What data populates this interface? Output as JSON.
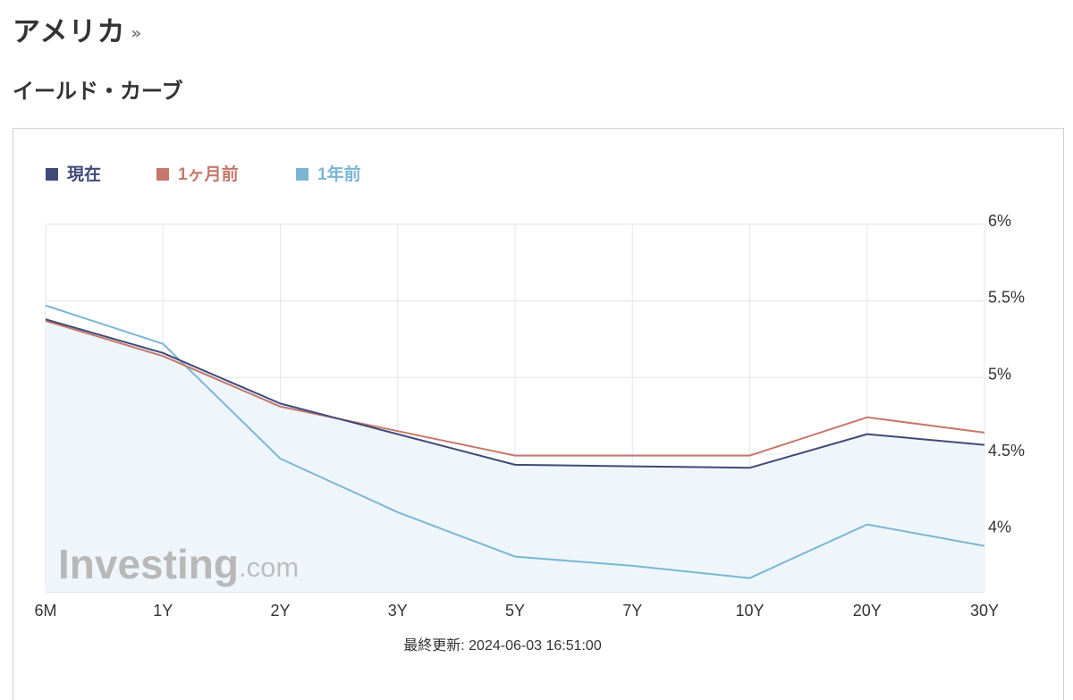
{
  "header": {
    "title": "アメリカ",
    "title_chevron": "»",
    "section_title": "イールド・カーブ"
  },
  "watermark": {
    "brand": "Investing",
    "suffix": ".com"
  },
  "chart_data": {
    "type": "line",
    "categories": [
      "6M",
      "1Y",
      "2Y",
      "3Y",
      "5Y",
      "7Y",
      "10Y",
      "20Y",
      "30Y"
    ],
    "series": [
      {
        "name": "現在",
        "color": "#3f4a78",
        "values": [
          5.38,
          5.16,
          4.83,
          4.63,
          4.43,
          4.42,
          4.41,
          4.63,
          4.56
        ]
      },
      {
        "name": "1ヶ月前",
        "color": "#c5786a",
        "values": [
          5.37,
          5.14,
          4.81,
          4.65,
          4.49,
          4.49,
          4.49,
          4.74,
          4.64
        ]
      },
      {
        "name": "1年前",
        "color": "#7ab6d3",
        "values": [
          5.47,
          5.22,
          4.47,
          4.12,
          3.83,
          3.77,
          3.69,
          4.04,
          3.9
        ]
      }
    ],
    "y_ticks": [
      {
        "value": 6.0,
        "label": "6%"
      },
      {
        "value": 5.5,
        "label": "5.5%"
      },
      {
        "value": 5.0,
        "label": "5%"
      },
      {
        "value": 4.5,
        "label": "4.5%"
      },
      {
        "value": 4.0,
        "label": "4%"
      }
    ],
    "ylim": [
      3.6,
      6.0
    ],
    "y_axis_side": "right",
    "grid": true,
    "legend_position": "top-left",
    "area_fill_series": "現在",
    "area_fill_color": "#eef6fc",
    "footer": "最終更新: 2024-06-03 16:51:00"
  }
}
